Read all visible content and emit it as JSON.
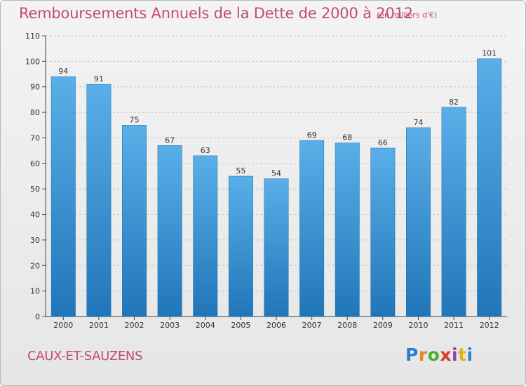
{
  "title": "Remboursements Annuels de la Dette de 2000 à 2012",
  "subtitle": "(en milliers d'€)",
  "commune": "CAUX-ET-SAUZENS",
  "logo": {
    "letters": [
      "P",
      "r",
      "o",
      "x",
      "i",
      "t",
      "i"
    ],
    "colors": [
      "#2b7fd1",
      "#e38a1b",
      "#4caf2e",
      "#d93a2b",
      "#8e44ad",
      "#e3b21b",
      "#2b7fd1"
    ]
  },
  "colors": {
    "bar_top": "#5aafe8",
    "bar_bottom": "#2076b9",
    "accent": "#c5487f"
  },
  "chart_data": {
    "type": "bar",
    "categories": [
      "2000",
      "2001",
      "2002",
      "2003",
      "2004",
      "2005",
      "2006",
      "2007",
      "2008",
      "2009",
      "2010",
      "2011",
      "2012"
    ],
    "values": [
      94,
      91,
      75,
      67,
      63,
      55,
      54,
      69,
      68,
      66,
      74,
      82,
      101
    ],
    "ylim": [
      0,
      110
    ],
    "yticks": [
      0,
      10,
      20,
      30,
      40,
      50,
      60,
      70,
      80,
      90,
      100,
      110
    ],
    "grid": true
  }
}
